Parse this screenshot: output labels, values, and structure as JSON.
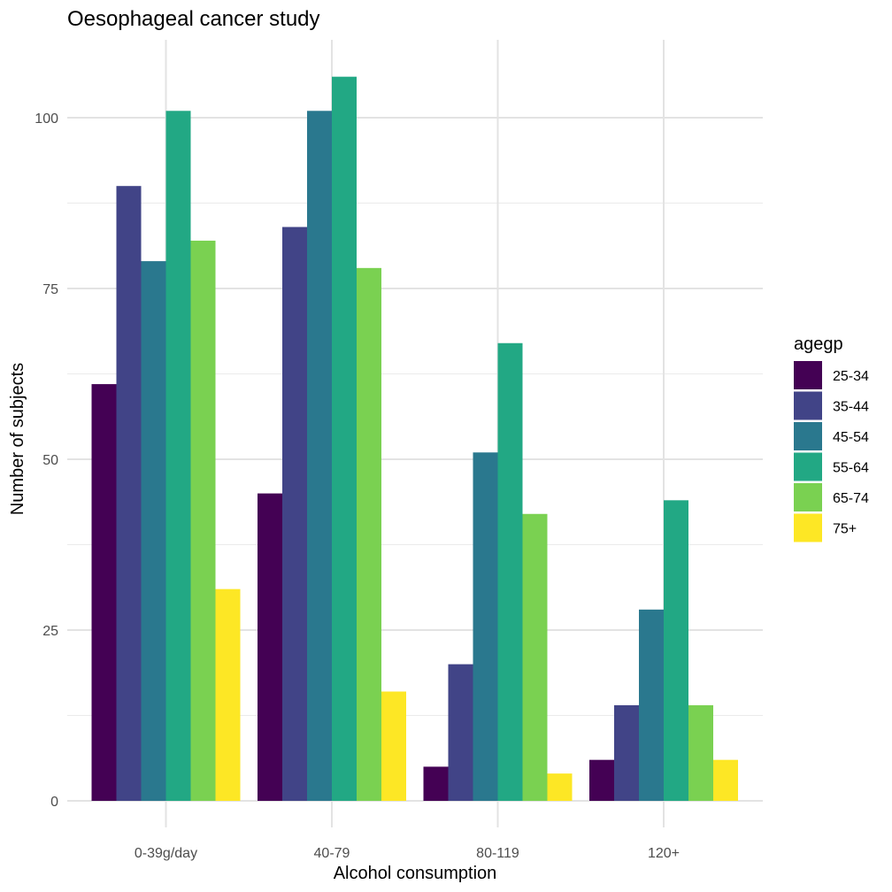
{
  "chart_data": {
    "type": "bar",
    "title": "Oesophageal cancer study",
    "xlabel": "Alcohol consumption",
    "ylabel": "Number of subjects",
    "categories": [
      "0-39g/day",
      "40-79",
      "80-119",
      "120+"
    ],
    "yticks": [
      0,
      25,
      50,
      75,
      100
    ],
    "ylim": [
      0,
      111
    ],
    "grid": true,
    "legend": {
      "title": "agegp",
      "position": "right"
    },
    "series": [
      {
        "name": "25-34",
        "color": "#440154",
        "values": [
          61,
          45,
          5,
          6
        ]
      },
      {
        "name": "35-44",
        "color": "#414487",
        "values": [
          90,
          84,
          20,
          14
        ]
      },
      {
        "name": "45-54",
        "color": "#2A788E",
        "values": [
          79,
          101,
          51,
          28
        ]
      },
      {
        "name": "55-64",
        "color": "#22A884",
        "values": [
          101,
          106,
          67,
          44
        ]
      },
      {
        "name": "65-74",
        "color": "#7AD151",
        "values": [
          82,
          78,
          42,
          14
        ]
      },
      {
        "name": "75+",
        "color": "#FDE725",
        "values": [
          31,
          16,
          4,
          6
        ]
      }
    ]
  }
}
